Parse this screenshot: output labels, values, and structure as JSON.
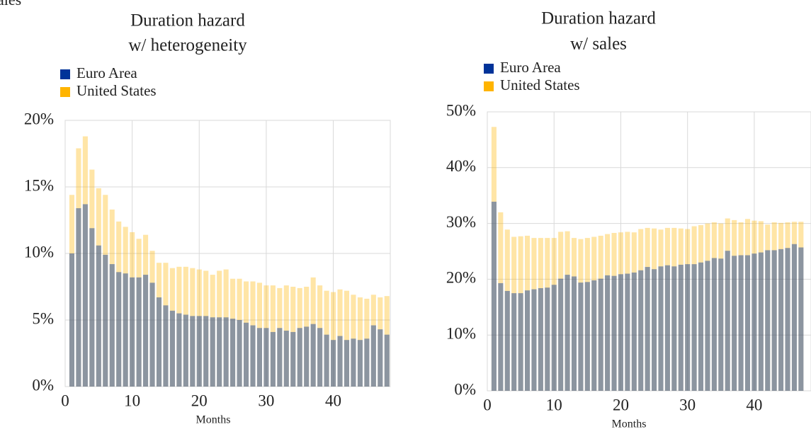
{
  "cropped_text": "ales",
  "chart_data": [
    {
      "type": "bar",
      "title": "Duration hazard",
      "subtitle": "w/ heterogeneity",
      "x_label": "Months",
      "x": [
        1,
        2,
        3,
        4,
        5,
        6,
        7,
        8,
        9,
        10,
        11,
        12,
        13,
        14,
        15,
        16,
        17,
        18,
        19,
        20,
        21,
        22,
        23,
        24,
        25,
        26,
        27,
        28,
        29,
        30,
        31,
        32,
        33,
        34,
        35,
        36,
        37,
        38,
        39,
        40,
        41,
        42,
        43,
        44,
        45,
        46,
        47,
        48
      ],
      "series": [
        {
          "name": "Euro Area",
          "color": "#003399",
          "values": [
            10.0,
            13.4,
            13.7,
            11.9,
            10.6,
            9.9,
            9.2,
            8.6,
            8.5,
            8.2,
            8.2,
            8.4,
            7.8,
            6.7,
            6.1,
            5.7,
            5.5,
            5.4,
            5.3,
            5.3,
            5.3,
            5.2,
            5.2,
            5.2,
            5.1,
            5.0,
            4.8,
            4.6,
            4.4,
            4.4,
            4.1,
            4.4,
            4.2,
            4.1,
            4.4,
            4.5,
            4.7,
            4.4,
            3.9,
            3.5,
            3.8,
            3.5,
            3.6,
            3.5,
            3.6,
            4.6,
            4.3,
            3.9
          ]
        },
        {
          "name": "United States",
          "color": "#ffb400",
          "values": [
            14.4,
            17.9,
            18.8,
            16.3,
            14.9,
            14.4,
            13.3,
            12.4,
            12.0,
            11.6,
            11.1,
            11.4,
            10.2,
            9.3,
            9.3,
            8.9,
            9.0,
            9.0,
            8.9,
            8.8,
            8.7,
            8.4,
            8.7,
            8.8,
            8.1,
            8.1,
            7.9,
            7.9,
            7.8,
            7.6,
            7.6,
            7.4,
            7.6,
            7.5,
            7.4,
            7.5,
            8.2,
            7.6,
            7.2,
            7.1,
            7.3,
            7.2,
            6.9,
            6.7,
            6.6,
            6.9,
            6.7,
            6.8
          ]
        }
      ],
      "xlim": [
        0,
        48.5
      ],
      "xticks": [
        0,
        10,
        20,
        30,
        40
      ],
      "ylim": [
        0,
        20
      ],
      "yticks": [
        {
          "value": 0,
          "label": "0%"
        },
        {
          "value": 5,
          "label": "5%"
        },
        {
          "value": 10,
          "label": "10%"
        },
        {
          "value": 15,
          "label": "15%"
        },
        {
          "value": 20,
          "label": "20%"
        }
      ],
      "grid": true
    },
    {
      "type": "bar",
      "title": "Duration hazard",
      "subtitle": "w/ sales",
      "x_label": "Months",
      "x": [
        1,
        2,
        3,
        4,
        5,
        6,
        7,
        8,
        9,
        10,
        11,
        12,
        13,
        14,
        15,
        16,
        17,
        18,
        19,
        20,
        21,
        22,
        23,
        24,
        25,
        26,
        27,
        28,
        29,
        30,
        31,
        32,
        33,
        34,
        35,
        36,
        37,
        38,
        39,
        40,
        41,
        42,
        43,
        44,
        45,
        46,
        47
      ],
      "series": [
        {
          "name": "Euro Area",
          "color": "#003399",
          "values": [
            33.9,
            19.3,
            17.9,
            17.5,
            17.5,
            18.0,
            18.2,
            18.4,
            18.5,
            19.0,
            20.1,
            20.8,
            20.5,
            19.4,
            19.5,
            19.8,
            20.1,
            20.7,
            20.6,
            20.9,
            21.0,
            21.2,
            21.6,
            22.2,
            21.8,
            22.3,
            22.5,
            22.3,
            22.6,
            22.7,
            22.7,
            23.0,
            23.3,
            23.8,
            23.7,
            25.1,
            24.2,
            24.3,
            24.3,
            24.6,
            24.8,
            25.2,
            25.2,
            25.4,
            25.6,
            26.3,
            25.7
          ]
        },
        {
          "name": "United States",
          "color": "#ffb400",
          "values": [
            47.3,
            32.0,
            28.9,
            27.6,
            27.7,
            27.8,
            27.4,
            27.4,
            27.4,
            27.4,
            28.5,
            28.6,
            27.4,
            27.2,
            27.4,
            27.6,
            27.8,
            28.1,
            28.3,
            28.4,
            28.5,
            28.4,
            29.0,
            29.2,
            29.1,
            28.9,
            29.2,
            29.2,
            29.1,
            29.0,
            29.5,
            29.7,
            30.0,
            30.2,
            30.0,
            30.9,
            30.6,
            30.2,
            30.8,
            30.5,
            30.4,
            29.8,
            30.2,
            30.1,
            30.2,
            30.3,
            30.3
          ]
        }
      ],
      "xlim": [
        0,
        48.5
      ],
      "xticks": [
        0,
        10,
        20,
        30,
        40
      ],
      "ylim": [
        0,
        50
      ],
      "yticks": [
        {
          "value": 0,
          "label": "0%"
        },
        {
          "value": 10,
          "label": "10%"
        },
        {
          "value": 20,
          "label": "20%"
        },
        {
          "value": 30,
          "label": "30%"
        },
        {
          "value": 40,
          "label": "40%"
        },
        {
          "value": 50,
          "label": "50%"
        }
      ],
      "grid": true
    }
  ]
}
